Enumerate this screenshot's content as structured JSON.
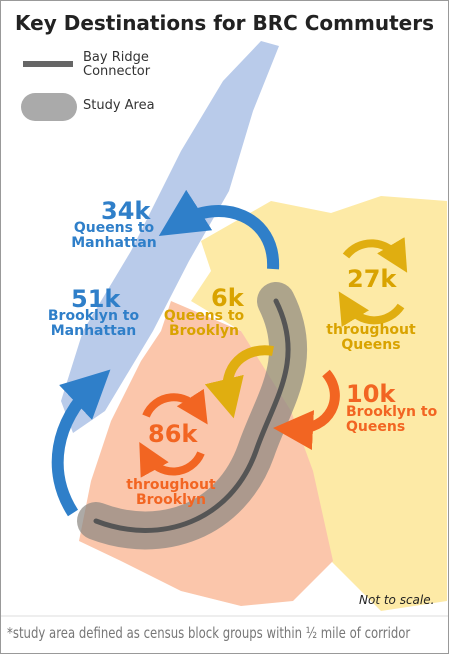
{
  "header": {
    "title": "Key Destinations for BRC Commuters"
  },
  "legend": [
    {
      "label": "Bay Ridge Connector"
    },
    {
      "label": "Study Area"
    }
  ],
  "flows": [
    {
      "value": "34k",
      "label": "Queens to Manhattan"
    },
    {
      "value": "51k",
      "label": "Brooklyn to Manhattan"
    },
    {
      "value": "6k",
      "label": "Queens to Brooklyn"
    },
    {
      "value": "27k",
      "label": "throughout Queens"
    },
    {
      "value": "10k",
      "label": "Brooklyn to Queens"
    },
    {
      "value": "86k",
      "label": "throughout Brooklyn"
    }
  ],
  "note": "Not to scale.",
  "footnote": "*study area defined as census block groups within ½ mile of corridor"
}
